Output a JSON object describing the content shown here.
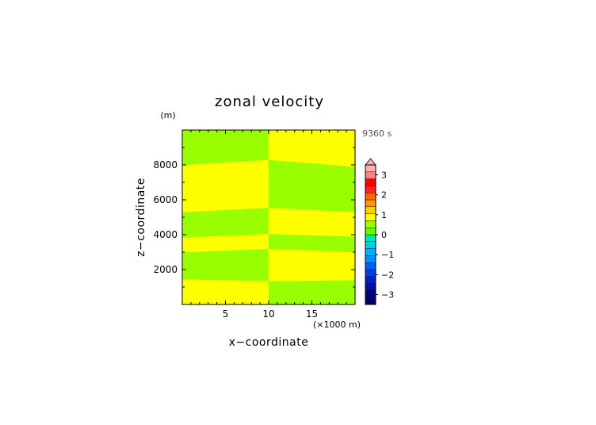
{
  "chart_data": {
    "type": "heatmap",
    "title": "zonal velocity",
    "xlabel": "x−coordinate",
    "ylabel": "z−coordinate",
    "x_unit": "(×1000 m)",
    "y_unit": "(m)",
    "time_label": "9360 s",
    "xlim": [
      0,
      20
    ],
    "ylim": [
      0,
      10000
    ],
    "x_ticks": [
      5,
      10,
      15
    ],
    "y_ticks": [
      2000,
      4000,
      6000,
      8000
    ],
    "grid": false,
    "colors": {
      "green": "#99ff00",
      "yellow": "#ffff00"
    },
    "left_band_boundaries_z": [
      0,
      1450,
      3000,
      3850,
      5300,
      8000,
      10000
    ],
    "left_band_boundaries_z_right_edge": [
      0,
      1350,
      3200,
      4050,
      5550,
      8300,
      10000
    ],
    "left_band_colors": [
      "yellow",
      "green",
      "yellow",
      "green",
      "yellow",
      "green"
    ],
    "right_band_boundaries_z_left_edge": [
      0,
      1350,
      3200,
      4050,
      5550,
      8300,
      10000
    ],
    "right_band_boundaries_z": [
      0,
      1400,
      3000,
      3900,
      5300,
      7900,
      10000
    ],
    "right_band_colors": [
      "green",
      "yellow",
      "green",
      "yellow",
      "green",
      "yellow"
    ],
    "split_x": 10,
    "colorbar": {
      "tick_labels": [
        "3",
        "2",
        "1",
        "0",
        "−1",
        "−2",
        "−3"
      ],
      "tick_values": [
        3,
        2,
        1,
        0,
        -1,
        -2,
        -3
      ],
      "range": [
        -3.5,
        3.5
      ],
      "top_extension": true,
      "level_colors": [
        "#000060",
        "#000080",
        "#0010a0",
        "#0020c0",
        "#0040e0",
        "#0060ff",
        "#0090ff",
        "#00b0ff",
        "#00d0e0",
        "#00e8b0",
        "#60ff00",
        "#99ff00",
        "#ffff00",
        "#ffd000",
        "#ff9900",
        "#ff6600",
        "#ff2020",
        "#ff0000",
        "#ff8080",
        "#ffb0b0"
      ]
    }
  }
}
